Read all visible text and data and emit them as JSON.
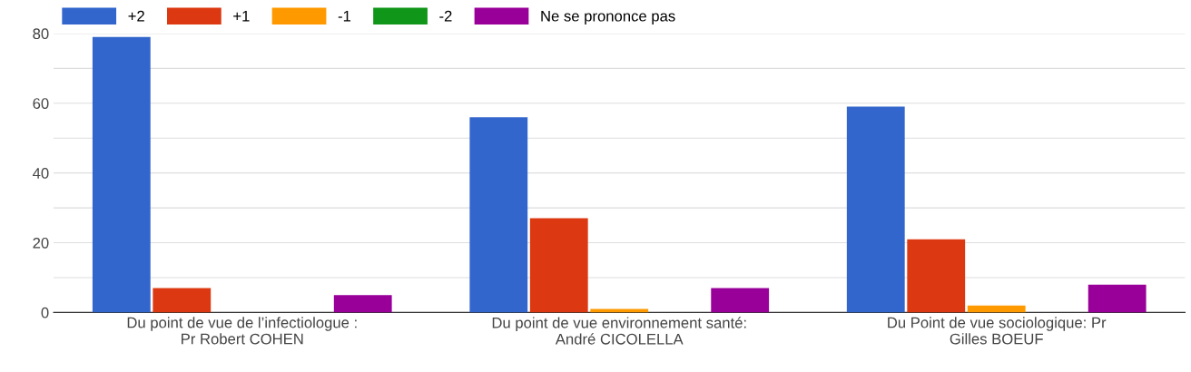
{
  "chart_data": {
    "type": "bar",
    "categories": [
      "Du point de vue de l’infectiologue : Pr Robert COHEN",
      "Du point de vue environnement santé: André CICOLELLA",
      "Du Point de vue sociologique: Pr Gilles BOEUF"
    ],
    "series": [
      {
        "name": "+2",
        "color": "#3366cc",
        "values": [
          79,
          56,
          59
        ]
      },
      {
        "name": "+1",
        "color": "#dc3912",
        "values": [
          7,
          27,
          21
        ]
      },
      {
        "name": "-1",
        "color": "#ff9900",
        "values": [
          0,
          1,
          2
        ]
      },
      {
        "name": "-2",
        "color": "#109618",
        "values": [
          0,
          0,
          0
        ]
      },
      {
        "name": "Ne se prononce pas",
        "color": "#990099",
        "values": [
          5,
          7,
          8
        ]
      }
    ],
    "ylim": [
      0,
      80
    ],
    "yticks": [
      0,
      {
        "value": 10,
        "label": null
      },
      20,
      {
        "value": 30,
        "label": null
      },
      40,
      {
        "value": 50,
        "label": null
      },
      60,
      {
        "value": 70,
        "label": null
      },
      80
    ],
    "grid": "y",
    "legend": "top"
  }
}
